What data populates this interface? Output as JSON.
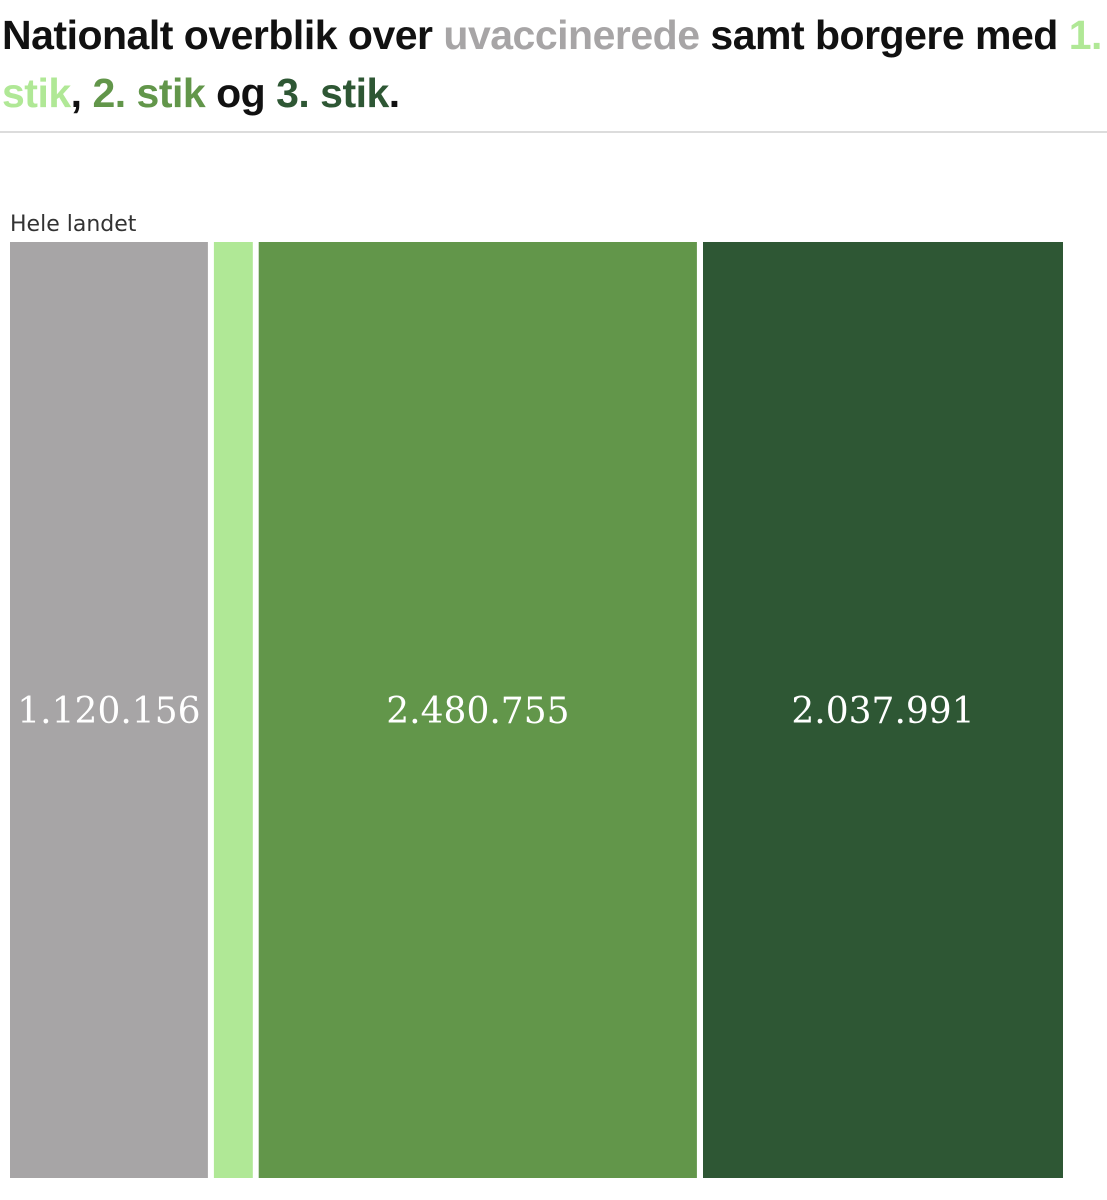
{
  "title": {
    "part1": "Nationalt overblik over ",
    "unvaccinated": "uvaccinerede",
    "part2": " samt borgere med ",
    "dose1": "1. stik",
    "sep1": ", ",
    "dose2": "2. stik",
    "sep2": " og ",
    "dose3": "3. stik",
    "end": "."
  },
  "colors": {
    "unvaccinated": "#a7a5a6",
    "dose1": "#b0e896",
    "dose2": "#62964a",
    "dose3": "#2e5734"
  },
  "chart_data": {
    "type": "bar",
    "layout": "stacked-horizontal-proportional",
    "category": "Hele landet",
    "series": [
      {
        "name": "uvaccinerede",
        "value": 1120156,
        "label": "1.120.156",
        "color": "#a7a5a6"
      },
      {
        "name": "1. stik",
        "value": 220000,
        "label": "",
        "color": "#b0e896"
      },
      {
        "name": "2. stik",
        "value": 2480755,
        "label": "2.480.755",
        "color": "#62964a"
      },
      {
        "name": "3. stik",
        "value": 2037991,
        "label": "2.037.991",
        "color": "#2e5734"
      }
    ]
  }
}
